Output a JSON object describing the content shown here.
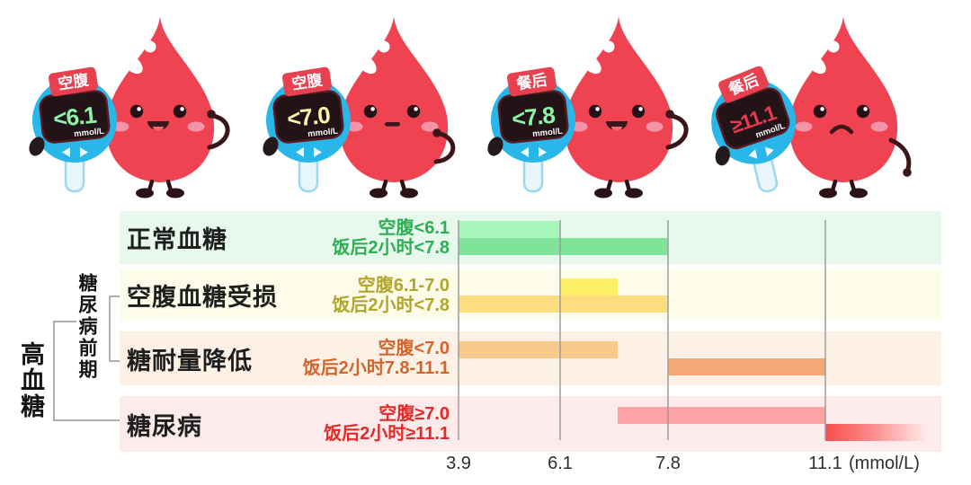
{
  "mascots": [
    {
      "period": "空腹",
      "value": "<6.1",
      "unit": "mmol/L",
      "value_color": "#8ff3a7",
      "mood": "happy"
    },
    {
      "period": "空腹",
      "value": "<7.0",
      "unit": "mmol/L",
      "value_color": "#fdf3a8",
      "mood": "neutral"
    },
    {
      "period": "餐后",
      "value": "<7.8",
      "unit": "mmol/L",
      "value_color": "#8ff3a7",
      "mood": "happy"
    },
    {
      "period": "餐后",
      "value": "≥11.1",
      "unit": "mmol/L",
      "value_color": "#ea394e",
      "mood": "sad"
    }
  ],
  "left_labels": {
    "hyperglycemia": "高血糖",
    "prediabetes": "糖尿病前期"
  },
  "palette": {
    "meter_blue": "#29b6e9",
    "banner_red": "#e7404e",
    "drop_red": "#ef4351",
    "gridline_gray": "#9c9c9c"
  },
  "chart_data": {
    "type": "bar",
    "unit_label": "(mmol/L)",
    "x_ticks": [
      "3.9",
      "6.1",
      "7.8",
      "11.1"
    ],
    "x_tick_values": [
      3.9,
      6.1,
      7.8,
      11.1
    ],
    "rows": [
      {
        "label": "正常血糖",
        "criteria": [
          "空腹<6.1",
          "饭后2小时<7.8"
        ],
        "bg": "#e7f8ec",
        "text_color": "#2fae53",
        "bar_colors": [
          "#a7f7bb",
          "#7fe49a"
        ],
        "bars": [
          {
            "from": 3.9,
            "to": 6.1
          },
          {
            "from": 3.9,
            "to": 7.8
          }
        ]
      },
      {
        "label": "空腹血糖受损",
        "criteria": [
          "空腹6.1-7.0",
          "饭后2小时<7.8"
        ],
        "bg": "#fdfce8",
        "text_color": "#b1a52e",
        "bar_colors": [
          "#fdee66",
          "#fcdd80"
        ],
        "bars": [
          {
            "from": 6.1,
            "to": 7.0
          },
          {
            "from": 3.9,
            "to": 7.8
          }
        ]
      },
      {
        "label": "糖耐量降低",
        "criteria": [
          "空腹<7.0",
          "饭后2小时7.8-11.1"
        ],
        "bg": "#fdf1e5",
        "text_color": "#d2652d",
        "bar_colors": [
          "#f9c88b",
          "#f3a975"
        ],
        "bars": [
          {
            "from": 3.9,
            "to": 7.0
          },
          {
            "from": 7.8,
            "to": 11.1
          }
        ]
      },
      {
        "label": "糖尿病",
        "criteria": [
          "空腹≥7.0",
          "饭后2小时≥11.1"
        ],
        "bg": "#fdeaea",
        "text_color": "#e22a28",
        "bar_colors": [
          "#fda2a5",
          "#f94b4b"
        ],
        "bars": [
          {
            "from": 7.0,
            "to": 11.1
          },
          {
            "from": 11.1,
            "to": 13.4,
            "gradient": true
          }
        ]
      }
    ]
  }
}
